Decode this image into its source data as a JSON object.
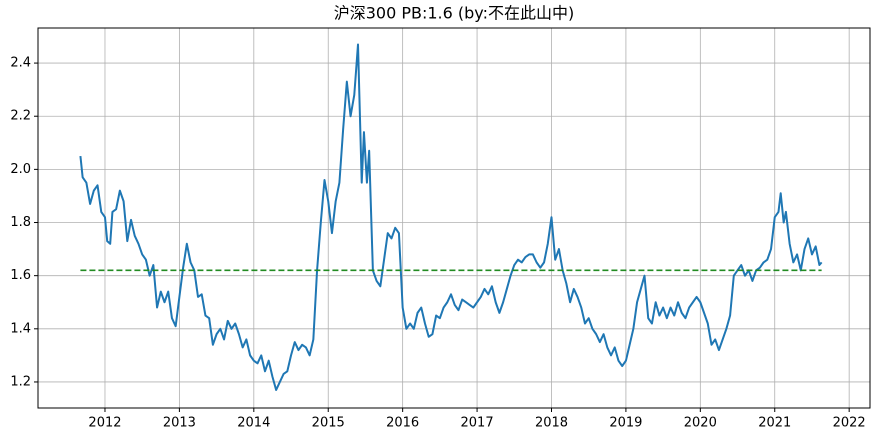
{
  "chart_data": {
    "type": "line",
    "title": "沪深300  PB:1.6 (by:不在此山中)",
    "xlim": [
      2011.1,
      2022.28
    ],
    "ylim": [
      1.102,
      2.532
    ],
    "xticks": [
      2012,
      2013,
      2014,
      2015,
      2016,
      2017,
      2018,
      2019,
      2020,
      2021,
      2022
    ],
    "yticks": [
      1.2,
      1.4,
      1.6,
      1.8,
      {
        "value": 2,
        "label": "2.0"
      },
      2.2,
      2.4
    ],
    "grid": true,
    "reference_line": {
      "y": 1.62,
      "x": [
        2011.67,
        2021.63
      ],
      "color": "#228b22"
    },
    "series": [
      {
        "color": "#1f77b4",
        "x": [
          2011.67,
          2011.7,
          2011.75,
          2011.8,
          2011.85,
          2011.9,
          2011.95,
          2012,
          2012.03,
          2012.07,
          2012.1,
          2012.15,
          2012.2,
          2012.25,
          2012.3,
          2012.35,
          2012.4,
          2012.45,
          2012.5,
          2012.55,
          2012.6,
          2012.65,
          2012.7,
          2012.75,
          2012.8,
          2012.85,
          2012.9,
          2012.95,
          2013,
          2013.05,
          2013.1,
          2013.15,
          2013.2,
          2013.25,
          2013.3,
          2013.35,
          2013.4,
          2013.45,
          2013.5,
          2013.55,
          2013.6,
          2013.65,
          2013.7,
          2013.75,
          2013.8,
          2013.85,
          2013.9,
          2013.95,
          2014,
          2014.05,
          2014.1,
          2014.15,
          2014.2,
          2014.25,
          2014.3,
          2014.35,
          2014.4,
          2014.45,
          2014.5,
          2014.55,
          2014.6,
          2014.65,
          2014.7,
          2014.75,
          2014.8,
          2014.85,
          2014.9,
          2014.95,
          2015,
          2015.05,
          2015.1,
          2015.15,
          2015.2,
          2015.25,
          2015.3,
          2015.35,
          2015.4,
          2015.45,
          2015.48,
          2015.52,
          2015.55,
          2015.6,
          2015.65,
          2015.7,
          2015.75,
          2015.8,
          2015.85,
          2015.9,
          2015.95,
          2016,
          2016.05,
          2016.1,
          2016.15,
          2016.2,
          2016.25,
          2016.3,
          2016.35,
          2016.4,
          2016.45,
          2016.5,
          2016.55,
          2016.6,
          2016.65,
          2016.7,
          2016.75,
          2016.8,
          2016.85,
          2016.9,
          2016.95,
          2017,
          2017.05,
          2017.1,
          2017.15,
          2017.2,
          2017.25,
          2017.3,
          2017.35,
          2017.4,
          2017.45,
          2017.5,
          2017.55,
          2017.6,
          2017.65,
          2017.7,
          2017.75,
          2017.8,
          2017.85,
          2017.9,
          2017.95,
          2018,
          2018.05,
          2018.1,
          2018.15,
          2018.2,
          2018.25,
          2018.3,
          2018.35,
          2018.4,
          2018.45,
          2018.5,
          2018.55,
          2018.6,
          2018.65,
          2018.7,
          2018.75,
          2018.8,
          2018.85,
          2018.9,
          2018.95,
          2019,
          2019.05,
          2019.1,
          2019.15,
          2019.2,
          2019.25,
          2019.3,
          2019.35,
          2019.4,
          2019.45,
          2019.5,
          2019.55,
          2019.6,
          2019.65,
          2019.7,
          2019.75,
          2019.8,
          2019.85,
          2019.9,
          2019.95,
          2020,
          2020.05,
          2020.1,
          2020.15,
          2020.2,
          2020.25,
          2020.3,
          2020.35,
          2020.4,
          2020.45,
          2020.5,
          2020.55,
          2020.6,
          2020.65,
          2020.7,
          2020.75,
          2020.8,
          2020.85,
          2020.9,
          2020.95,
          2021,
          2021.05,
          2021.08,
          2021.12,
          2021.15,
          2021.2,
          2021.25,
          2021.3,
          2021.35,
          2021.4,
          2021.45,
          2021.5,
          2021.55,
          2021.6,
          2021.63
        ],
        "values": [
          2.05,
          1.97,
          1.95,
          1.87,
          1.92,
          1.94,
          1.84,
          1.82,
          1.73,
          1.72,
          1.84,
          1.85,
          1.92,
          1.88,
          1.73,
          1.81,
          1.75,
          1.72,
          1.68,
          1.66,
          1.6,
          1.64,
          1.48,
          1.54,
          1.5,
          1.54,
          1.44,
          1.41,
          1.52,
          1.63,
          1.72,
          1.65,
          1.62,
          1.52,
          1.53,
          1.45,
          1.44,
          1.34,
          1.38,
          1.4,
          1.36,
          1.43,
          1.4,
          1.42,
          1.38,
          1.33,
          1.36,
          1.3,
          1.28,
          1.27,
          1.3,
          1.24,
          1.28,
          1.22,
          1.17,
          1.2,
          1.23,
          1.24,
          1.3,
          1.35,
          1.32,
          1.34,
          1.33,
          1.3,
          1.36,
          1.62,
          1.8,
          1.96,
          1.88,
          1.76,
          1.88,
          1.95,
          2.15,
          2.33,
          2.2,
          2.28,
          2.47,
          1.95,
          2.14,
          1.95,
          2.07,
          1.62,
          1.58,
          1.56,
          1.66,
          1.76,
          1.74,
          1.78,
          1.76,
          1.48,
          1.4,
          1.42,
          1.4,
          1.46,
          1.48,
          1.42,
          1.37,
          1.38,
          1.45,
          1.44,
          1.48,
          1.5,
          1.53,
          1.49,
          1.47,
          1.51,
          1.5,
          1.49,
          1.48,
          1.5,
          1.52,
          1.55,
          1.53,
          1.56,
          1.5,
          1.46,
          1.5,
          1.55,
          1.6,
          1.64,
          1.66,
          1.65,
          1.67,
          1.68,
          1.68,
          1.65,
          1.63,
          1.65,
          1.72,
          1.82,
          1.66,
          1.7,
          1.62,
          1.57,
          1.5,
          1.55,
          1.52,
          1.48,
          1.42,
          1.44,
          1.4,
          1.38,
          1.35,
          1.38,
          1.33,
          1.3,
          1.33,
          1.28,
          1.26,
          1.28,
          1.34,
          1.4,
          1.5,
          1.55,
          1.6,
          1.44,
          1.42,
          1.5,
          1.45,
          1.48,
          1.44,
          1.48,
          1.45,
          1.5,
          1.46,
          1.44,
          1.48,
          1.5,
          1.52,
          1.5,
          1.46,
          1.42,
          1.34,
          1.36,
          1.32,
          1.36,
          1.4,
          1.45,
          1.6,
          1.62,
          1.64,
          1.6,
          1.62,
          1.58,
          1.62,
          1.63,
          1.65,
          1.66,
          1.7,
          1.82,
          1.84,
          1.91,
          1.8,
          1.84,
          1.72,
          1.65,
          1.68,
          1.62,
          1.7,
          1.74,
          1.68,
          1.71,
          1.64,
          1.65
        ]
      }
    ]
  }
}
